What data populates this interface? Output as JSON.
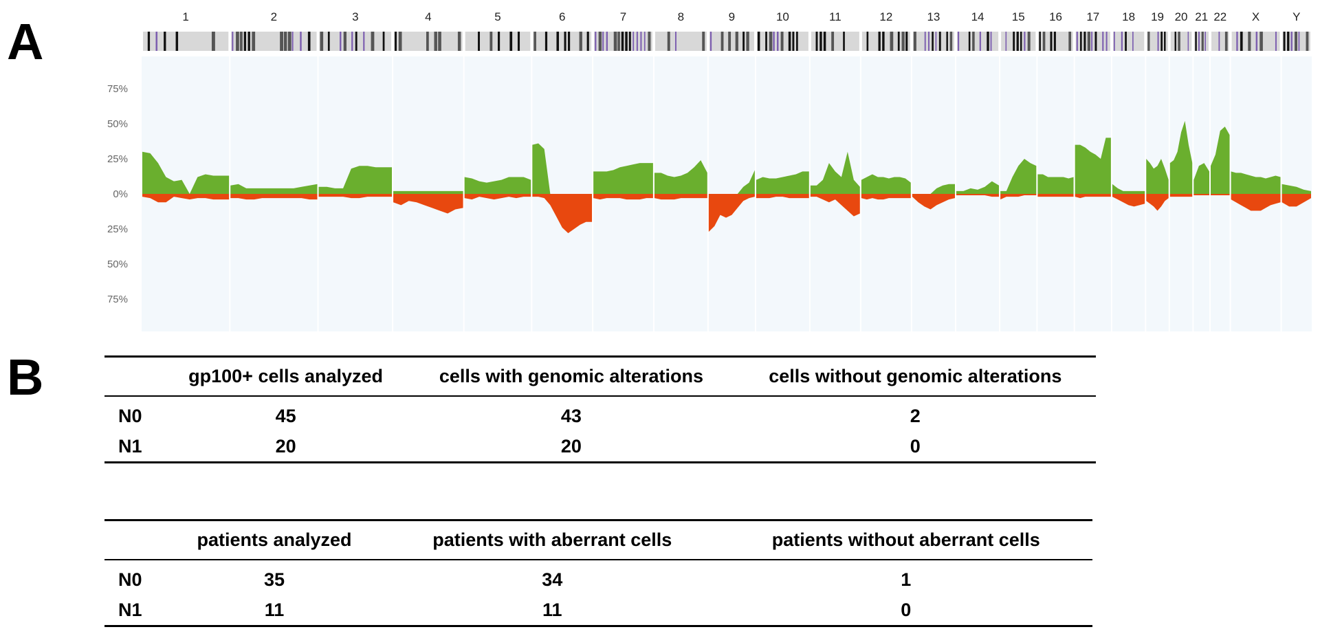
{
  "panels": {
    "a": "A",
    "b": "B"
  },
  "chart_data": {
    "type": "area",
    "ytick_labels": [
      "75%",
      "50%",
      "25%",
      "0%",
      "25%",
      "50%",
      "75%"
    ],
    "ylim": [
      -100,
      100
    ],
    "yunit": "%",
    "grid": false,
    "colors": {
      "gain": "#6aaf2e",
      "loss": "#e8480f",
      "background": "#f3f8fc"
    },
    "chromosomes": [
      {
        "name": "1",
        "gain": [
          30,
          29,
          22,
          12,
          9,
          10,
          0,
          12,
          14,
          13,
          13,
          13
        ],
        "loss": [
          2,
          3,
          6,
          6,
          2,
          3,
          4,
          3,
          3,
          4,
          4,
          4
        ]
      },
      {
        "name": "2",
        "gain": [
          6,
          7,
          4,
          4,
          4,
          4,
          4,
          4,
          4,
          5,
          6,
          7
        ],
        "loss": [
          3,
          3,
          4,
          4,
          3,
          3,
          3,
          3,
          3,
          3,
          4,
          4
        ]
      },
      {
        "name": "3",
        "gain": [
          5,
          5,
          4,
          4,
          18,
          20,
          20,
          19,
          19,
          19
        ],
        "loss": [
          2,
          2,
          2,
          2,
          3,
          3,
          2,
          2,
          2,
          2
        ]
      },
      {
        "name": "4",
        "gain": [
          2,
          2,
          2,
          2,
          2,
          2,
          2,
          2,
          2,
          2
        ],
        "loss": [
          6,
          8,
          5,
          6,
          8,
          10,
          12,
          14,
          11,
          10
        ]
      },
      {
        "name": "5",
        "gain": [
          12,
          11,
          9,
          8,
          9,
          10,
          12,
          12,
          12,
          10
        ],
        "loss": [
          3,
          4,
          2,
          3,
          4,
          3,
          2,
          3,
          2,
          2
        ]
      },
      {
        "name": "6",
        "gain": [
          35,
          36,
          32,
          0,
          0,
          0,
          0,
          0,
          0,
          0,
          0
        ],
        "loss": [
          2,
          2,
          3,
          8,
          16,
          24,
          28,
          25,
          22,
          20,
          20
        ]
      },
      {
        "name": "7",
        "gain": [
          16,
          16,
          16,
          17,
          19,
          20,
          21,
          22,
          22,
          22
        ],
        "loss": [
          3,
          4,
          3,
          3,
          3,
          4,
          4,
          4,
          3,
          3
        ]
      },
      {
        "name": "8",
        "gain": [
          15,
          15,
          13,
          12,
          13,
          15,
          19,
          24,
          15
        ],
        "loss": [
          3,
          4,
          4,
          4,
          3,
          3,
          3,
          3,
          3
        ]
      },
      {
        "name": "9",
        "gain": [
          0,
          0,
          0,
          0,
          0,
          0,
          5,
          8,
          17
        ],
        "loss": [
          27,
          23,
          15,
          17,
          15,
          10,
          5,
          3,
          2
        ]
      },
      {
        "name": "10",
        "gain": [
          10,
          12,
          11,
          11,
          12,
          13,
          14,
          16,
          16
        ],
        "loss": [
          3,
          3,
          3,
          2,
          2,
          3,
          3,
          3,
          3
        ]
      },
      {
        "name": "11",
        "gain": [
          6,
          6,
          10,
          22,
          16,
          12,
          30,
          10,
          5
        ],
        "loss": [
          2,
          2,
          4,
          6,
          4,
          8,
          12,
          16,
          14
        ]
      },
      {
        "name": "12",
        "gain": [
          10,
          12,
          14,
          12,
          12,
          11,
          12,
          12,
          11,
          8
        ],
        "loss": [
          3,
          4,
          3,
          4,
          4,
          3,
          3,
          3,
          3,
          3
        ]
      },
      {
        "name": "13",
        "gain": [
          0,
          0,
          0,
          0,
          4,
          6,
          7,
          7
        ],
        "loss": [
          2,
          6,
          9,
          11,
          8,
          6,
          4,
          3
        ]
      },
      {
        "name": "14",
        "gain": [
          2,
          2,
          4,
          3,
          5,
          9,
          6
        ],
        "loss": [
          1,
          1,
          1,
          1,
          1,
          2,
          2
        ]
      },
      {
        "name": "15",
        "gain": [
          2,
          2,
          12,
          20,
          25,
          22,
          20
        ],
        "loss": [
          4,
          2,
          2,
          2,
          1,
          1,
          1
        ]
      },
      {
        "name": "16",
        "gain": [
          14,
          14,
          12,
          12,
          12,
          12,
          11,
          12
        ],
        "loss": [
          2,
          2,
          2,
          2,
          2,
          2,
          2,
          2
        ]
      },
      {
        "name": "17",
        "gain": [
          35,
          35,
          33,
          30,
          28,
          25,
          40,
          40
        ],
        "loss": [
          2,
          3,
          2,
          2,
          2,
          2,
          2,
          2
        ]
      },
      {
        "name": "18",
        "gain": [
          7,
          4,
          2,
          2,
          2,
          2,
          2
        ],
        "loss": [
          2,
          4,
          6,
          8,
          9,
          8,
          7
        ]
      },
      {
        "name": "19",
        "gain": [
          25,
          22,
          18,
          20,
          25,
          18,
          10
        ],
        "loss": [
          5,
          7,
          9,
          12,
          9,
          5,
          3
        ]
      },
      {
        "name": "20",
        "gain": [
          22,
          24,
          30,
          44,
          52,
          35,
          22
        ],
        "loss": [
          2,
          2,
          2,
          2,
          2,
          2,
          2
        ]
      },
      {
        "name": "21",
        "gain": [
          10,
          20,
          22,
          16
        ],
        "loss": [
          1,
          1,
          1,
          1
        ]
      },
      {
        "name": "22",
        "gain": [
          20,
          28,
          45,
          48,
          42
        ],
        "loss": [
          1,
          1,
          1,
          1,
          1
        ]
      },
      {
        "name": "X",
        "gain": [
          16,
          15,
          15,
          14,
          13,
          12,
          12,
          11,
          12,
          13,
          12
        ],
        "loss": [
          4,
          6,
          8,
          10,
          12,
          12,
          12,
          10,
          8,
          7,
          6
        ]
      },
      {
        "name": "Y",
        "gain": [
          7,
          6,
          5,
          3,
          2
        ],
        "loss": [
          6,
          9,
          9,
          6,
          3
        ]
      }
    ]
  },
  "tables": [
    {
      "headers": [
        "",
        "gp100+ cells analyzed",
        "cells with genomic alterations",
        "cells without genomic alterations"
      ],
      "rows": [
        [
          "N0",
          "45",
          "43",
          "2"
        ],
        [
          "N1",
          "20",
          "20",
          "0"
        ]
      ]
    },
    {
      "headers": [
        "",
        "patients analyzed",
        "patients with aberrant cells",
        "patients without aberrant cells"
      ],
      "rows": [
        [
          "N0",
          "35",
          "34",
          "1"
        ],
        [
          "N1",
          "11",
          "11",
          "0"
        ]
      ]
    }
  ]
}
